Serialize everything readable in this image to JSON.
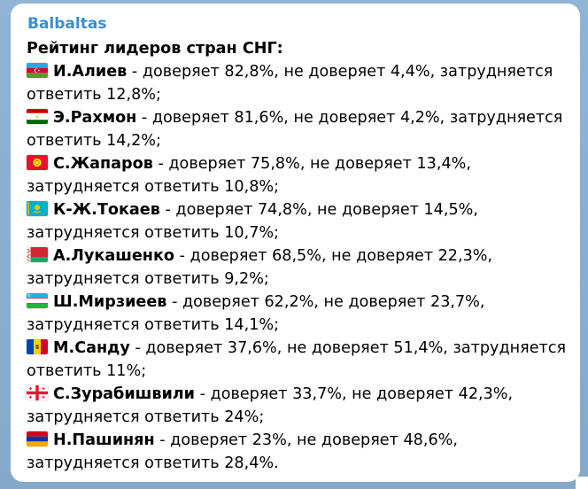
{
  "message": {
    "sender": "Balbaltas",
    "heading": "Рейтинг лидеров стран СНГ:",
    "entries": [
      {
        "flag_icon": "azerbaijan-flag-icon",
        "name": "И.Алиев",
        "line1": " - доверяет 82,8%, не доверяет 4,4%, затрудняется",
        "line2": "ответить 12,8%;"
      },
      {
        "flag_icon": "tajikistan-flag-icon",
        "name": "Э.Рахмон",
        "line1": " - доверяет 81,6%, не доверяет 4,2%, затрудняется",
        "line2": "ответить 14,2%;"
      },
      {
        "flag_icon": "kyrgyzstan-flag-icon",
        "name": "С.Жапаров",
        "line1": " - доверяет 75,8%, не доверяет 13,4%,",
        "line2": "затрудняется ответить 10,8%;"
      },
      {
        "flag_icon": "kazakhstan-flag-icon",
        "name": "К-Ж.Токаев",
        "line1": " - доверяет 74,8%, не доверяет 14,5%,",
        "line2": "затрудняется ответить 10,7%;"
      },
      {
        "flag_icon": "belarus-flag-icon",
        "name": "А.Лукашенко",
        "line1": " - доверяет 68,5%, не доверяет 22,3%,",
        "line2": "затрудняется ответить 9,2%;"
      },
      {
        "flag_icon": "uzbekistan-flag-icon",
        "name": "Ш.Мирзиеев",
        "line1": " - доверяет 62,2%, не доверяет 23,7%,",
        "line2": "затрудняется ответить 14,1%;"
      },
      {
        "flag_icon": "moldova-flag-icon",
        "name": "М.Санду",
        "line1": " - доверяет 37,6%, не доверяет 51,4%, затрудняется",
        "line2": "ответить 11%;"
      },
      {
        "flag_icon": "georgia-flag-icon",
        "name": "С.Зурабишвили",
        "line1": " - доверяет 33,7%, не доверяет 42,3%,",
        "line2": "затрудняется ответить 24%;"
      },
      {
        "flag_icon": "armenia-flag-icon",
        "name": "Н.Пашинян",
        "line1": " - доверяет 23%, не доверяет 48,6%,",
        "line2": "затрудняется ответить 28,4%."
      }
    ]
  },
  "colors": {
    "sender_name": "#3a8ed0",
    "chat_background": "#8aafcf",
    "bubble_background": "#ffffff"
  }
}
